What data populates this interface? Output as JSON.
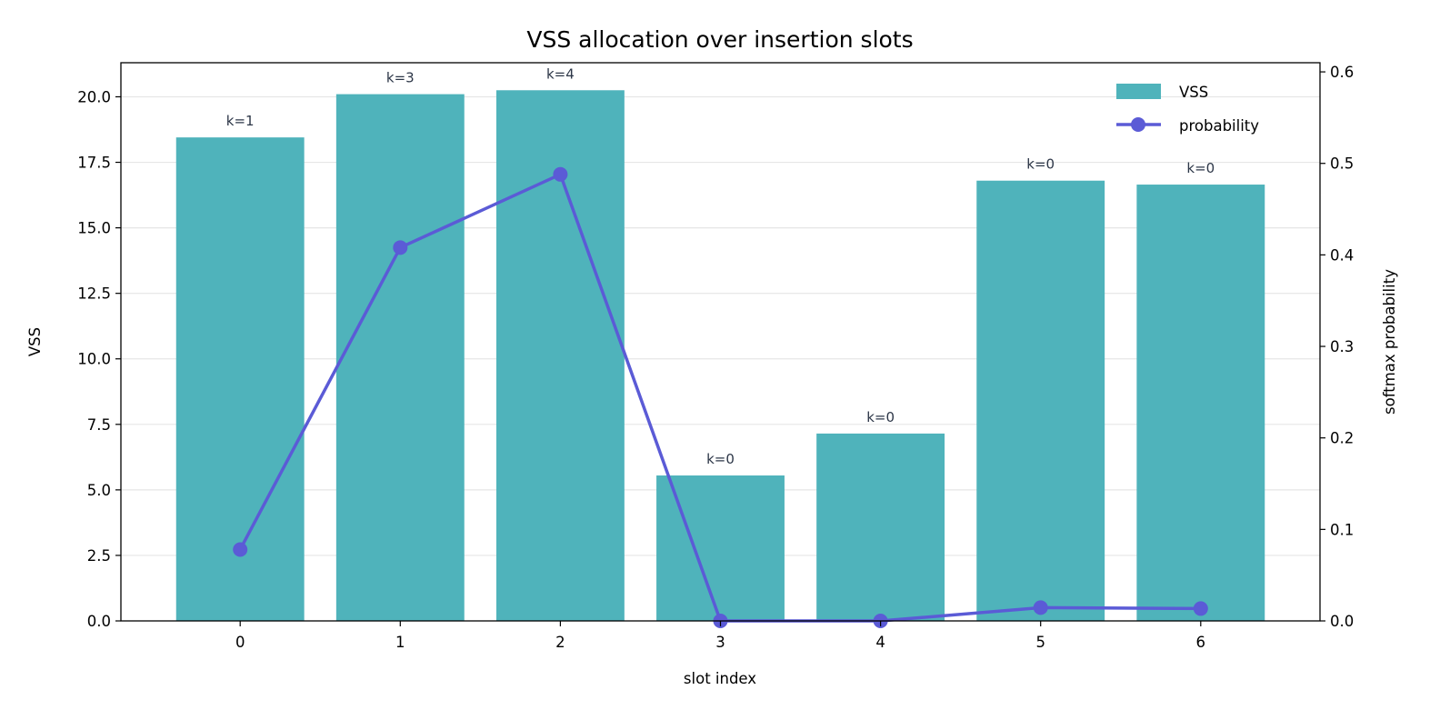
{
  "chart_data": {
    "type": "bar",
    "title": "VSS allocation over insertion slots",
    "xlabel": "slot index",
    "ylabel": "VSS",
    "y2label": "softmax probability",
    "categories": [
      "0",
      "1",
      "2",
      "3",
      "4",
      "5",
      "6"
    ],
    "ylim": [
      0,
      21.3
    ],
    "y2lim": [
      0,
      0.61
    ],
    "yticks": [
      "0.0",
      "2.5",
      "5.0",
      "7.5",
      "10.0",
      "12.5",
      "15.0",
      "17.5",
      "20.0"
    ],
    "y2ticks": [
      "0.0",
      "0.1",
      "0.2",
      "0.3",
      "0.4",
      "0.5",
      "0.6"
    ],
    "grid": "horizontal",
    "legend_position": "top-right",
    "series": [
      {
        "name": "VSS",
        "kind": "bar",
        "axis": "left",
        "color": "#4fb3bb",
        "values": [
          18.45,
          20.1,
          20.25,
          5.55,
          7.15,
          16.8,
          16.65
        ],
        "labels": [
          "k=1",
          "k=3",
          "k=4",
          "k=0",
          "k=0",
          "k=0",
          "k=0"
        ]
      },
      {
        "name": "probability",
        "kind": "line",
        "axis": "right",
        "color": "#5b5bd6",
        "values": [
          0.078,
          0.408,
          0.488,
          0.0,
          0.0,
          0.0145,
          0.0135
        ]
      }
    ]
  }
}
